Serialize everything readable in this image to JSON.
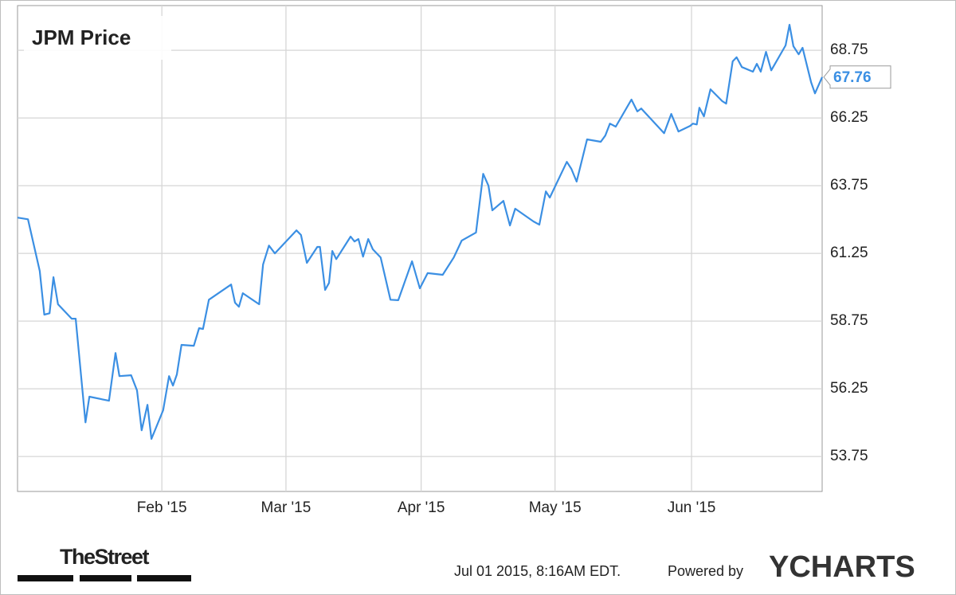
{
  "chart_data": {
    "type": "line",
    "title": "JPM Price",
    "x": [
      0,
      1.6,
      3.4,
      4.1,
      4.9,
      5.5,
      6.2,
      8.3,
      8.9,
      10.4,
      11.0,
      14.0,
      15.0,
      15.6,
      17.4,
      18.3,
      19.0,
      19.9,
      20.5,
      22.3,
      23.2,
      23.8,
      24.4,
      25.1,
      27.0,
      27.8,
      28.4,
      29.3,
      32.7,
      33.3,
      33.9,
      34.5,
      37.0,
      37.6,
      38.5,
      39.4,
      42.7,
      43.4,
      44.3,
      45.9,
      46.3,
      47.1,
      47.7,
      48.2,
      48.8,
      51.0,
      51.6,
      52.2,
      52.9,
      53.7,
      54.4,
      55.6,
      57.1,
      58.3,
      60.4,
      61.6,
      62.8,
      65.1,
      66.8,
      68.0,
      70.2,
      71.3,
      72.1,
      72.7,
      74.4,
      75.4,
      76.2,
      79.0,
      79.9,
      80.9,
      81.5,
      84.1,
      84.8,
      85.6,
      87.2,
      89.3,
      90.0,
      90.7,
      91.6,
      94.0,
      94.9,
      95.5,
      99.0,
      100.1,
      101.2,
      103.0,
      103.4,
      104.0,
      104.4,
      105.1,
      106.1,
      107.9,
      108.5,
      109.5,
      110.1,
      110.9,
      112.6,
      113.2,
      113.8,
      114.6,
      115.4,
      117.6,
      118.2,
      118.8,
      119.6,
      120.2,
      121.5,
      122.1,
      123.2
    ],
    "values": [
      62.57,
      62.51,
      60.6,
      58.99,
      59.04,
      60.37,
      59.37,
      58.84,
      58.84,
      55.01,
      55.96,
      55.81,
      57.57,
      56.72,
      56.75,
      56.19,
      54.72,
      55.66,
      54.4,
      55.46,
      56.72,
      56.37,
      56.78,
      57.87,
      57.84,
      58.49,
      58.46,
      59.54,
      60.1,
      59.43,
      59.28,
      59.78,
      59.37,
      60.84,
      61.54,
      61.25,
      62.1,
      61.93,
      60.9,
      61.49,
      61.49,
      59.9,
      60.16,
      61.34,
      61.04,
      61.87,
      61.69,
      61.78,
      61.13,
      61.78,
      61.4,
      61.1,
      59.54,
      59.52,
      60.96,
      59.96,
      60.52,
      60.46,
      61.1,
      61.72,
      62.02,
      64.19,
      63.75,
      62.84,
      63.19,
      62.28,
      62.9,
      62.43,
      62.31,
      63.54,
      63.31,
      64.63,
      64.37,
      63.9,
      65.46,
      65.37,
      65.6,
      66.04,
      65.93,
      66.93,
      66.49,
      66.6,
      65.69,
      66.4,
      65.75,
      65.96,
      66.04,
      66.01,
      66.63,
      66.31,
      67.31,
      66.87,
      66.78,
      68.34,
      68.49,
      68.13,
      67.96,
      68.25,
      67.96,
      68.69,
      68.01,
      68.93,
      69.69,
      68.9,
      68.6,
      68.84,
      67.57,
      67.16,
      67.76
    ],
    "color": "#3b8fe3",
    "xlim": [
      0,
      123.2
    ],
    "xticks": [
      {
        "value": 22.1,
        "label": "Feb '15"
      },
      {
        "value": 41.1,
        "label": "Mar '15"
      },
      {
        "value": 61.8,
        "label": "Apr '15"
      },
      {
        "value": 82.3,
        "label": "May '15"
      },
      {
        "value": 103.2,
        "label": "Jun '15"
      }
    ],
    "ylim": [
      52.46,
      70.4
    ],
    "yticks": [
      53.75,
      56.25,
      58.75,
      61.25,
      63.75,
      66.25,
      68.75
    ],
    "grid": true,
    "logo": "TheStreet",
    "timestamp": "Jul 01 2015, 8:16AM EDT.",
    "powered_by": "Powered by",
    "brand": "YCHARTS"
  }
}
